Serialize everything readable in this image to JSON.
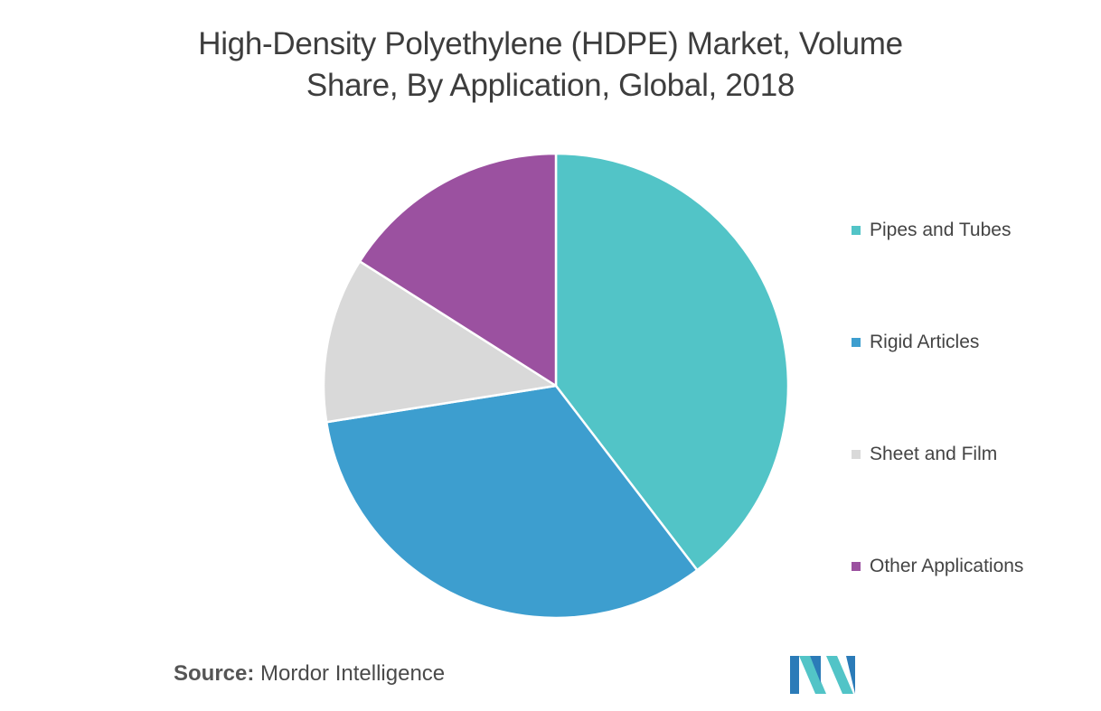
{
  "chart_data": {
    "type": "pie",
    "title_lines": [
      "High-Density Polyethylene (HDPE) Market, Volume",
      "Share, By Application, Global, 2018"
    ],
    "unit": "%",
    "start": "12 o'clock",
    "direction": "clockwise",
    "slices": [
      {
        "label": "Pipes and Tubes",
        "value": 39.6,
        "color": "#52C4C7"
      },
      {
        "label": "Rigid Articles",
        "value": 32.9,
        "color": "#3D9ECF"
      },
      {
        "label": "Sheet and Film",
        "value": 11.5,
        "color": "#D9D9D9"
      },
      {
        "label": "Other Applications",
        "value": 16.0,
        "color": "#9B51A0"
      }
    ],
    "legend_position": "right",
    "slice_border_color": "#FFFFFF"
  },
  "source": {
    "label": "Source:",
    "text": "Mordor Intelligence"
  },
  "logo": {
    "name": "mordor-intelligence-logo",
    "colors": [
      "#2B7BB8",
      "#52C4C7"
    ]
  }
}
